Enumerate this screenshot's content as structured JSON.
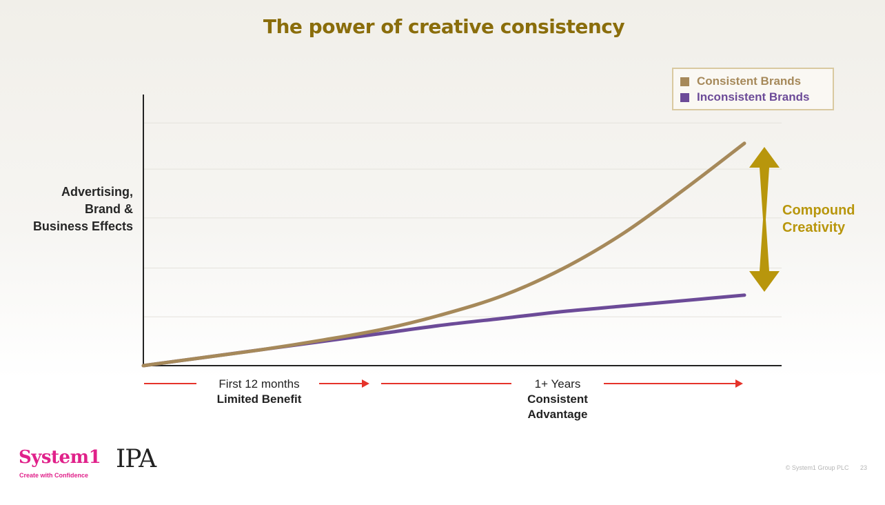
{
  "colors": {
    "title": "#8a6d0b",
    "consistent": "#a6895a",
    "inconsistent": "#6c4b98",
    "compound": "#b8960c",
    "period_arrow": "#e5332a",
    "axis": "#222222",
    "grid": "#e4e2dc"
  },
  "slide": {
    "title": "The power of creative consistency",
    "compound_label": [
      "Compound",
      "Creativity"
    ],
    "compound_arrow_icon": "double-headed-arrow-icon",
    "periods": [
      {
        "line1": "First 12 months",
        "line2": "Limited Benefit"
      },
      {
        "line1": "1+ Years",
        "line2": "Consistent",
        "line3": "Advantage"
      }
    ],
    "period_arrow_icon": "right-arrow-icon"
  },
  "chart_data": {
    "type": "line",
    "ylabel": [
      "Advertising,",
      "Brand &",
      "Business Effects"
    ],
    "xlabel": "",
    "x": [
      0,
      0.1,
      0.2,
      0.3,
      0.4,
      0.5,
      0.6,
      0.7,
      0.8,
      0.9,
      1.0
    ],
    "series": [
      {
        "name": "Consistent Brands",
        "values": [
          0,
          0.03,
          0.06,
          0.095,
          0.135,
          0.19,
          0.26,
          0.36,
          0.49,
          0.65,
          0.82
        ]
      },
      {
        "name": "Inconsistent Brands",
        "values": [
          0,
          0.03,
          0.06,
          0.09,
          0.12,
          0.15,
          0.175,
          0.2,
          0.22,
          0.24,
          0.26
        ]
      }
    ],
    "xlim": [
      0,
      1
    ],
    "ylim": [
      0,
      1
    ],
    "grid": true,
    "legend": "top-right"
  },
  "branding": {
    "system1_name": "System1",
    "system1_tagline": "Create with Confidence",
    "ipa": "IPA",
    "copyright": "© System1 Group PLC",
    "page_number": "23"
  }
}
